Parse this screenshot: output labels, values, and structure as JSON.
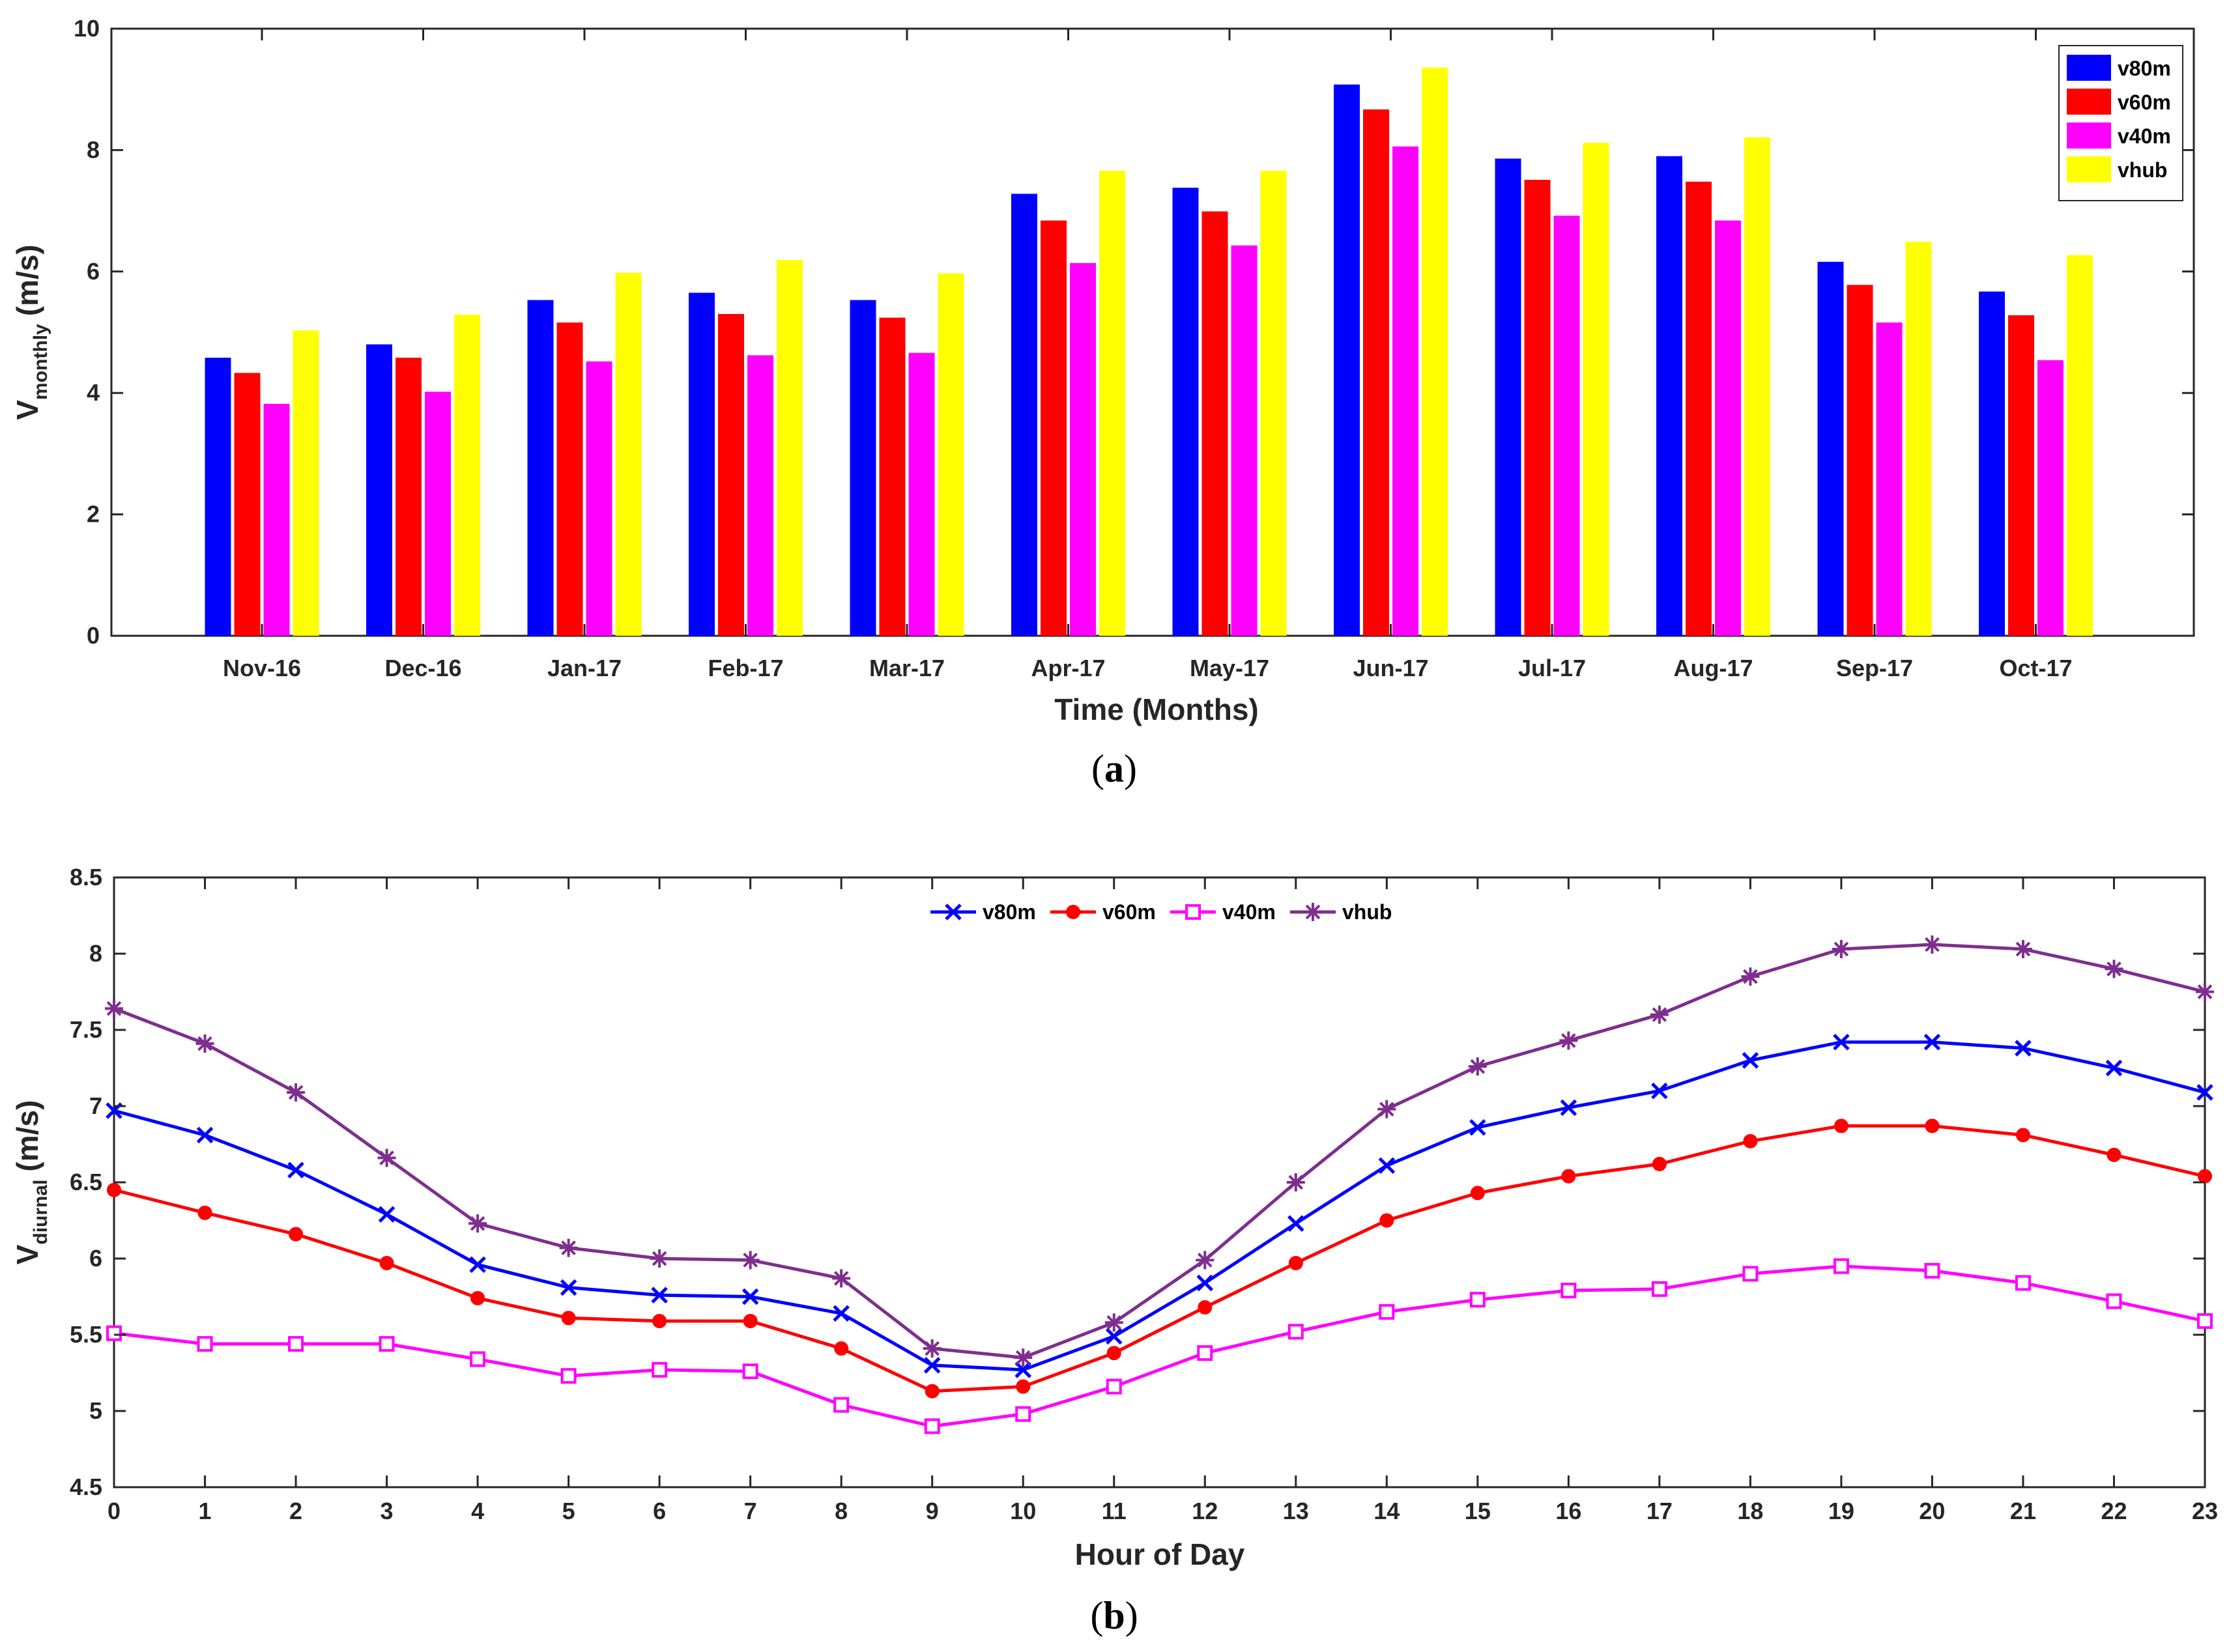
{
  "colors": {
    "v80m_bar": "#0000ff",
    "v60m_bar": "#ff0000",
    "v40m_bar": "#ff00ff",
    "vhub_bar": "#ffff00",
    "v80m_line": "#0000ff",
    "v60m_line": "#ff0000",
    "v40m_line": "#ff00ff",
    "vhub_line": "#7e2f8e",
    "axis": "#262626",
    "background": "#ffffff"
  },
  "panel_a": {
    "caption_open": "(",
    "caption_letter": "a",
    "caption_close": ")",
    "ylabel_main": "V",
    "ylabel_sub": "monthly",
    "ylabel_unit": "(m/s)",
    "xlabel": "Time (Months)"
  },
  "panel_b": {
    "caption_open": "(",
    "caption_letter": "b",
    "caption_close": ")",
    "ylabel_main": "V",
    "ylabel_sub": "diurnal",
    "ylabel_unit": "(m/s)",
    "xlabel": "Hour of Day"
  },
  "chart_data": [
    {
      "type": "bar",
      "title": "",
      "xlabel": "Time (Months)",
      "ylabel": "Vmonthly (m/s)",
      "ylim": [
        0,
        10
      ],
      "yticks": [
        0,
        2,
        4,
        6,
        8,
        10
      ],
      "grid": false,
      "legend_position": "top-right",
      "categories": [
        "Nov-16",
        "Dec-16",
        "Jan-17",
        "Feb-17",
        "Mar-17",
        "Apr-17",
        "May-17",
        "Jun-17",
        "Jul-17",
        "Aug-17",
        "Sep-17",
        "Oct-17"
      ],
      "series": [
        {
          "name": "v80m",
          "values": [
            4.58,
            4.8,
            5.53,
            5.65,
            5.53,
            7.28,
            7.38,
            9.08,
            7.86,
            7.9,
            6.16,
            5.67
          ]
        },
        {
          "name": "v60m",
          "values": [
            4.33,
            4.58,
            5.16,
            5.3,
            5.24,
            6.84,
            6.99,
            8.67,
            7.51,
            7.48,
            5.78,
            5.28
          ]
        },
        {
          "name": "v40m",
          "values": [
            3.82,
            4.02,
            4.52,
            4.62,
            4.66,
            6.14,
            6.43,
            8.06,
            6.92,
            6.84,
            5.16,
            4.54
          ]
        },
        {
          "name": "vhub",
          "values": [
            5.03,
            5.29,
            5.98,
            6.19,
            5.97,
            7.66,
            7.66,
            9.36,
            8.12,
            8.21,
            6.49,
            6.27
          ]
        }
      ]
    },
    {
      "type": "line",
      "title": "",
      "xlabel": "Hour of Day",
      "ylabel": "Vdiurnal (m/s)",
      "xlim": [
        0,
        23
      ],
      "ylim": [
        4.5,
        8.5
      ],
      "yticks": [
        4.5,
        5,
        5.5,
        6,
        6.5,
        7,
        7.5,
        8,
        8.5
      ],
      "grid": false,
      "legend_position": "top-center",
      "x": [
        0,
        1,
        2,
        3,
        4,
        5,
        6,
        7,
        8,
        9,
        10,
        11,
        12,
        13,
        14,
        15,
        16,
        17,
        18,
        19,
        20,
        21,
        22,
        23
      ],
      "series": [
        {
          "name": "v80m",
          "marker": "x",
          "values": [
            6.97,
            6.81,
            6.58,
            6.29,
            5.96,
            5.81,
            5.76,
            5.75,
            5.64,
            5.3,
            5.27,
            5.49,
            5.84,
            6.23,
            6.61,
            6.86,
            6.99,
            7.1,
            7.3,
            7.42,
            7.42,
            7.38,
            7.25,
            7.09
          ]
        },
        {
          "name": "v60m",
          "marker": "circle",
          "values": [
            6.45,
            6.3,
            6.16,
            5.97,
            5.74,
            5.61,
            5.59,
            5.59,
            5.41,
            5.13,
            5.16,
            5.38,
            5.68,
            5.97,
            6.25,
            6.43,
            6.54,
            6.62,
            6.77,
            6.87,
            6.87,
            6.81,
            6.68,
            6.54
          ]
        },
        {
          "name": "v40m",
          "marker": "square",
          "values": [
            5.51,
            5.44,
            5.44,
            5.44,
            5.34,
            5.23,
            5.27,
            5.26,
            5.04,
            4.9,
            4.98,
            5.16,
            5.38,
            5.52,
            5.65,
            5.73,
            5.79,
            5.8,
            5.9,
            5.95,
            5.92,
            5.84,
            5.72,
            5.59
          ]
        },
        {
          "name": "vhub",
          "marker": "asterisk",
          "values": [
            7.64,
            7.41,
            7.09,
            6.66,
            6.23,
            6.07,
            6.0,
            5.99,
            5.87,
            5.41,
            5.35,
            5.58,
            5.99,
            6.5,
            6.98,
            7.26,
            7.43,
            7.6,
            7.85,
            8.03,
            8.06,
            8.03,
            7.9,
            7.75
          ]
        }
      ]
    }
  ]
}
